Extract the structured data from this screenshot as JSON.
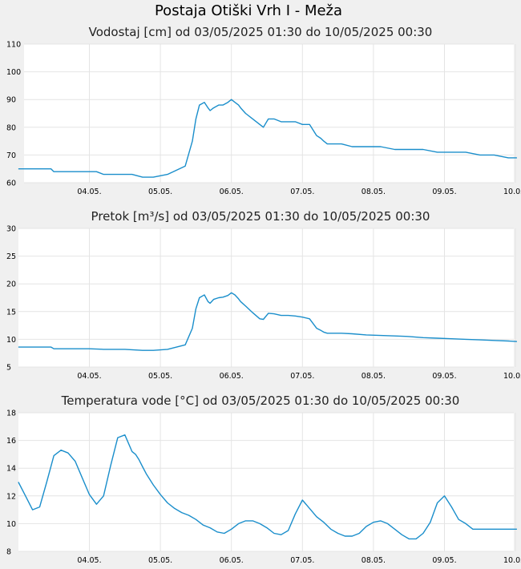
{
  "title": "Postaja Otiški Vrh I - Meža",
  "colors": {
    "background": "#f0f0f0",
    "plot": "#ffffff",
    "grid": "#e4e4e4",
    "line": "#1a8ecb"
  },
  "chart_data": [
    {
      "type": "line",
      "title": "Vodostaj [cm] od 03/05/2025 01:30 do 10/05/2025 00:30",
      "xlim": [
        0,
        7.02
      ],
      "ylim": [
        60,
        110
      ],
      "yticks": [
        "60",
        "70",
        "80",
        "90",
        "100",
        "110"
      ],
      "xticks": [
        "04.05.",
        "05.05.",
        "06.05.",
        "07.05.",
        "08.05.",
        "09.05.",
        "10.05."
      ],
      "grid": true,
      "series": [
        {
          "x": [
            0,
            0.46,
            0.5,
            0.6,
            0.7,
            0.8,
            0.9,
            1.0,
            1.1,
            1.2,
            1.3,
            1.4,
            1.5,
            1.6,
            1.75,
            1.9,
            2.1,
            2.35,
            2.45,
            2.5,
            2.55,
            2.62,
            2.67,
            2.7,
            2.75,
            2.82,
            2.88,
            2.95,
            3.0,
            3.05,
            3.1,
            3.13,
            3.2,
            3.3,
            3.4,
            3.45,
            3.52,
            3.6,
            3.7,
            3.8,
            3.9,
            4.0,
            4.1,
            4.2,
            4.26,
            4.3,
            4.35,
            4.45,
            4.55,
            4.7,
            4.9,
            5.1,
            5.3,
            5.5,
            5.7,
            5.9,
            6.1,
            6.3,
            6.5,
            6.7,
            6.9,
            7.02
          ],
          "y": [
            65,
            65,
            64,
            64,
            64,
            64,
            64,
            64,
            64,
            63,
            63,
            63,
            63,
            63,
            62,
            62,
            63,
            66,
            75,
            83,
            88,
            89,
            87,
            86,
            87,
            88,
            88,
            89,
            90,
            89,
            88,
            87,
            85,
            83,
            81,
            80,
            83,
            83,
            82,
            82,
            82,
            81,
            81,
            77,
            76,
            75,
            74,
            74,
            74,
            73,
            73,
            73,
            72,
            72,
            72,
            71,
            71,
            71,
            70,
            70,
            69,
            69
          ]
        }
      ]
    },
    {
      "type": "line",
      "title": "Pretok [m³/s] od 03/05/2025 01:30 do 10/05/2025 00:30",
      "xlim": [
        0,
        7.02
      ],
      "ylim": [
        5,
        30
      ],
      "yticks": [
        "5",
        "10",
        "15",
        "20",
        "25",
        "30"
      ],
      "xticks": [
        "04.05.",
        "05.05.",
        "06.05.",
        "07.05.",
        "08.05.",
        "09.05.",
        "10.05."
      ],
      "grid": true,
      "series": [
        {
          "x": [
            0,
            0.46,
            0.5,
            0.8,
            1.0,
            1.2,
            1.5,
            1.75,
            1.9,
            2.1,
            2.35,
            2.45,
            2.5,
            2.55,
            2.62,
            2.67,
            2.7,
            2.75,
            2.82,
            2.88,
            2.95,
            3.0,
            3.05,
            3.1,
            3.13,
            3.2,
            3.3,
            3.4,
            3.45,
            3.52,
            3.6,
            3.7,
            3.8,
            3.9,
            4.0,
            4.1,
            4.2,
            4.26,
            4.3,
            4.35,
            4.45,
            4.55,
            4.7,
            4.9,
            5.1,
            5.3,
            5.5,
            5.7,
            5.9,
            6.1,
            6.3,
            6.5,
            6.7,
            6.9,
            7.02
          ],
          "y": [
            8.6,
            8.6,
            8.3,
            8.3,
            8.3,
            8.2,
            8.2,
            8.0,
            8.0,
            8.2,
            9.0,
            12.0,
            15.5,
            17.5,
            18.0,
            16.8,
            16.5,
            17.2,
            17.5,
            17.6,
            17.9,
            18.4,
            18.0,
            17.3,
            16.8,
            16.0,
            14.8,
            13.7,
            13.6,
            14.7,
            14.6,
            14.3,
            14.3,
            14.2,
            14.0,
            13.7,
            12.0,
            11.6,
            11.3,
            11.1,
            11.1,
            11.1,
            11.0,
            10.8,
            10.7,
            10.6,
            10.5,
            10.3,
            10.2,
            10.1,
            10.0,
            9.9,
            9.8,
            9.7,
            9.6
          ]
        }
      ]
    },
    {
      "type": "line",
      "title": "Temperatura vode [°C] od 03/05/2025 01:30 do 10/05/2025 00:30",
      "xlim": [
        0,
        7.02
      ],
      "ylim": [
        8,
        18
      ],
      "yticks": [
        "8",
        "10",
        "12",
        "14",
        "16",
        "18"
      ],
      "xticks": [
        "04.05.",
        "05.05.",
        "06.05.",
        "07.05.",
        "08.05.",
        "09.05.",
        "10.05."
      ],
      "grid": true,
      "series": [
        {
          "x": [
            0,
            0.1,
            0.2,
            0.3,
            0.4,
            0.5,
            0.6,
            0.7,
            0.8,
            0.9,
            1.0,
            1.1,
            1.2,
            1.3,
            1.4,
            1.5,
            1.6,
            1.65,
            1.7,
            1.75,
            1.8,
            1.9,
            2.0,
            2.1,
            2.2,
            2.3,
            2.4,
            2.5,
            2.6,
            2.7,
            2.8,
            2.9,
            3.0,
            3.1,
            3.2,
            3.3,
            3.4,
            3.5,
            3.6,
            3.7,
            3.8,
            3.9,
            4.0,
            4.1,
            4.2,
            4.3,
            4.4,
            4.5,
            4.6,
            4.7,
            4.8,
            4.9,
            5.0,
            5.1,
            5.2,
            5.3,
            5.4,
            5.5,
            5.6,
            5.7,
            5.8,
            5.9,
            6.0,
            6.1,
            6.2,
            6.3,
            6.4,
            6.5,
            6.6,
            6.7,
            6.8,
            6.9,
            7.02
          ],
          "y": [
            13.0,
            12.0,
            11.0,
            11.2,
            13.0,
            14.9,
            15.3,
            15.1,
            14.5,
            13.3,
            12.1,
            11.4,
            12.0,
            14.2,
            16.2,
            16.4,
            15.2,
            15.0,
            14.6,
            14.1,
            13.6,
            12.8,
            12.1,
            11.5,
            11.1,
            10.8,
            10.6,
            10.3,
            9.9,
            9.7,
            9.4,
            9.3,
            9.6,
            10.0,
            10.2,
            10.2,
            10.0,
            9.7,
            9.3,
            9.2,
            9.5,
            10.7,
            11.7,
            11.1,
            10.5,
            10.1,
            9.6,
            9.3,
            9.1,
            9.1,
            9.3,
            9.8,
            10.1,
            10.2,
            10.0,
            9.6,
            9.2,
            8.9,
            8.9,
            9.3,
            10.1,
            11.5,
            12.0,
            11.2,
            10.3,
            10.0,
            9.6,
            9.6,
            9.6,
            9.6,
            9.6,
            9.6,
            9.6
          ]
        }
      ]
    }
  ]
}
